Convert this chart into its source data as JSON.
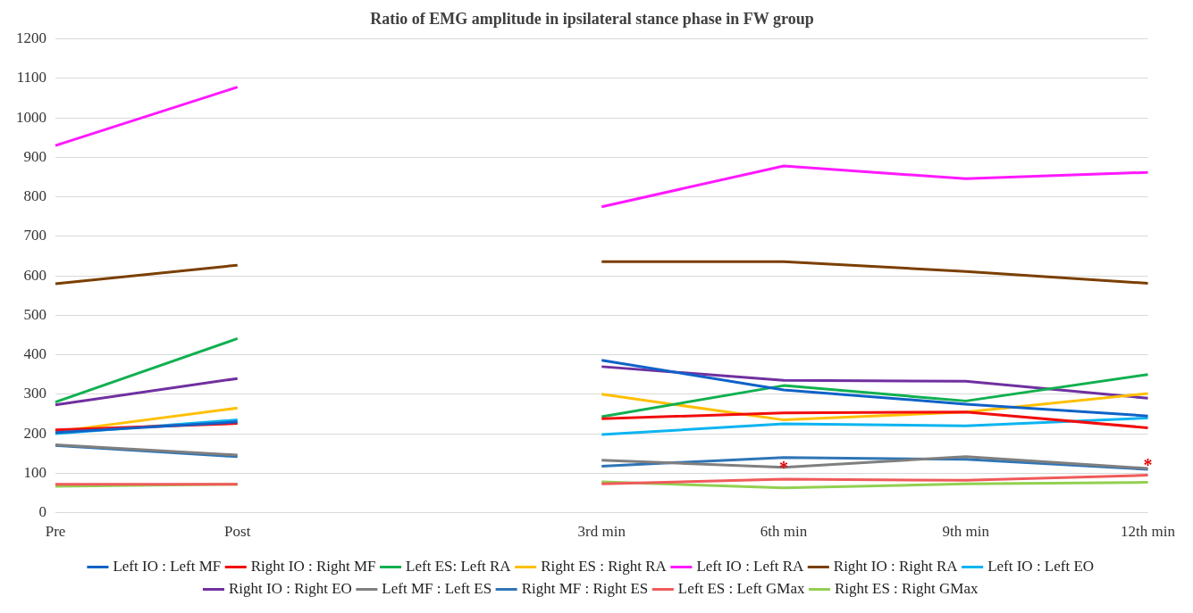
{
  "chart_data": {
    "type": "line",
    "title": "Ratio of EMG amplitude in ipsilateral stance phase in FW group",
    "categories": [
      "Pre",
      "Post",
      null,
      "3rd min",
      "6th min",
      "9th min",
      "12th min"
    ],
    "ylim": [
      0,
      1200
    ],
    "yticks": [
      0,
      100,
      200,
      300,
      400,
      500,
      600,
      700,
      800,
      900,
      1000,
      1100,
      1200
    ],
    "grid": "y",
    "legend": "bottom",
    "marker": "none",
    "line_style": "solid",
    "annotations": [
      {
        "text": "*",
        "x": "6th min",
        "y": 120
      },
      {
        "text": "*",
        "x": "12th min",
        "y": 125
      }
    ],
    "series": [
      {
        "name": "Left IO : Left MF",
        "color": "#0f62c8",
        "values": [
          203,
          230,
          null,
          386,
          311,
          275,
          245
        ]
      },
      {
        "name": "Right IO : Right MF",
        "color": "#f20d0d",
        "values": [
          210,
          226,
          null,
          238,
          253,
          255,
          215
        ]
      },
      {
        "name": "Left ES: Left RA",
        "color": "#11b050",
        "values": [
          280,
          441,
          null,
          243,
          322,
          283,
          350
        ]
      },
      {
        "name": "Right ES : Right RA",
        "color": "#ffbf00",
        "values": [
          205,
          265,
          null,
          300,
          235,
          255,
          302
        ]
      },
      {
        "name": "Left IO : Left RA",
        "color": "#ff19ff",
        "values": [
          930,
          1078,
          null,
          775,
          878,
          846,
          862
        ]
      },
      {
        "name": "Right IO : Right RA",
        "color": "#7b3f00",
        "values": [
          580,
          627,
          null,
          636,
          636,
          611,
          581
        ]
      },
      {
        "name": "Left IO : Left EO",
        "color": "#0db4f0",
        "values": [
          200,
          235,
          null,
          198,
          225,
          220,
          240
        ]
      },
      {
        "name": "Right IO : Right EO",
        "color": "#7030a0",
        "values": [
          273,
          340,
          null,
          370,
          335,
          333,
          290
        ]
      },
      {
        "name": "Left MF : Left ES",
        "color": "#7f7f7f",
        "values": [
          172,
          146,
          null,
          133,
          115,
          142,
          112
        ]
      },
      {
        "name": "Right MF : Right ES",
        "color": "#2e75b6",
        "values": [
          170,
          142,
          null,
          118,
          140,
          135,
          110
        ]
      },
      {
        "name": "Left ES : Left GMax",
        "color": "#f05a5a",
        "values": [
          72,
          72,
          null,
          73,
          85,
          82,
          95
        ]
      },
      {
        "name": "Right ES : Right GMax",
        "color": "#92d050",
        "values": [
          67,
          72,
          null,
          78,
          63,
          73,
          77
        ]
      }
    ]
  }
}
